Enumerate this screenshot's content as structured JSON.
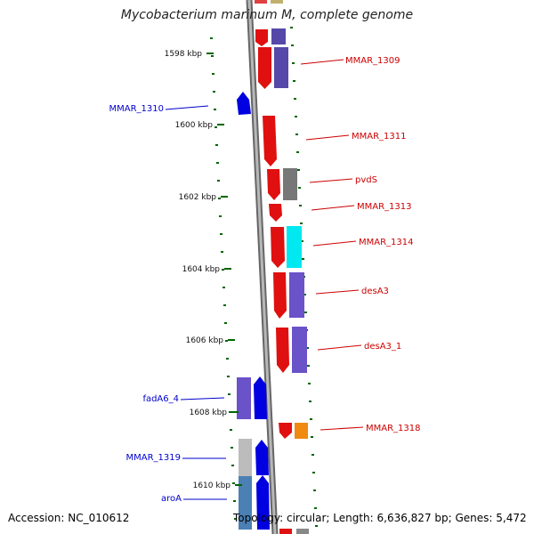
{
  "title": "Mycobacterium marinum M, complete genome",
  "footer": {
    "accession": "Accession: NC_010612",
    "summary": "Topology: circular; Length: 6,636,827 bp; Genes: 5,472"
  },
  "colors": {
    "forward_label": "#cc0000",
    "reverse_label": "#0000cc",
    "backbone": "#7d7d7d",
    "tick": "#006600"
  },
  "ticks": [
    "1598 kbp",
    "1600 kbp",
    "1602 kbp",
    "1604 kbp",
    "1606 kbp",
    "1608 kbp",
    "1610 kbp"
  ],
  "genes": [
    {
      "label": "MMAR_1309",
      "strand": "forward"
    },
    {
      "label": "MMAR_1310",
      "strand": "reverse"
    },
    {
      "label": "MMAR_1311",
      "strand": "forward"
    },
    {
      "label": "pvdS",
      "strand": "forward"
    },
    {
      "label": "MMAR_1313",
      "strand": "forward"
    },
    {
      "label": "MMAR_1314",
      "strand": "forward"
    },
    {
      "label": "desA3",
      "strand": "forward"
    },
    {
      "label": "desA3_1",
      "strand": "forward"
    },
    {
      "label": "fadA6_4",
      "strand": "reverse"
    },
    {
      "label": "MMAR_1318",
      "strand": "forward"
    },
    {
      "label": "MMAR_1319",
      "strand": "reverse"
    },
    {
      "label": "aroA",
      "strand": "reverse"
    }
  ]
}
